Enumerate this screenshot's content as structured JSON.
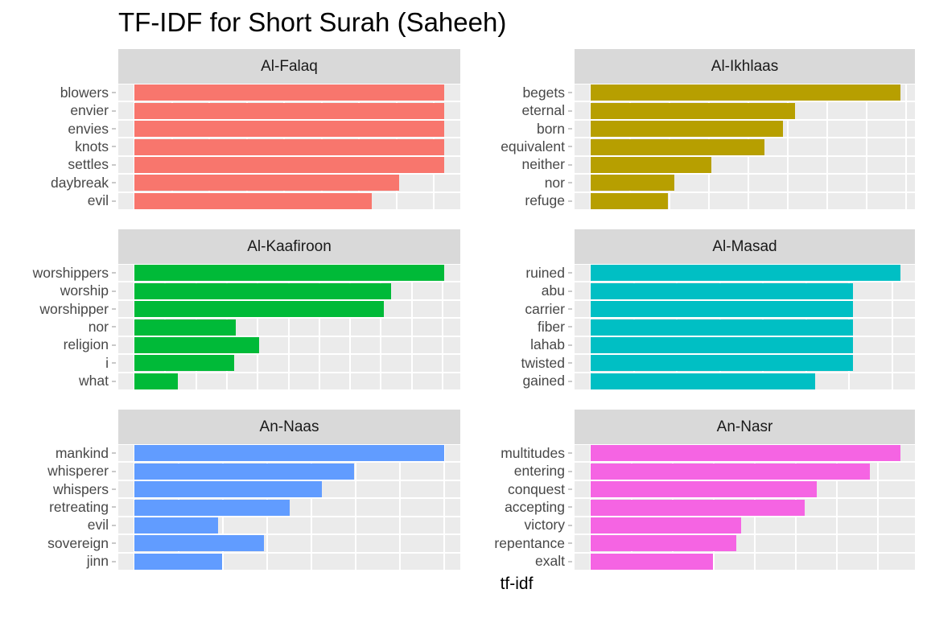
{
  "title": "TF-IDF for Short Surah (Saheeh)",
  "chart_data": {
    "type": "bar",
    "orientation": "horizontal",
    "title": "TF-IDF for Short Surah (Saheeh)",
    "xlabel": "tf-idf",
    "ylabel": "",
    "legend": "none",
    "grid": "white gridlines on gray panel background",
    "facet_layout": {
      "cols": 2,
      "rows": 3,
      "scales": "free"
    },
    "value_scale": "relative bar length per panel (max bar = 1.0); no numeric x tick labels are shown in the image",
    "theme": {
      "panel_background": "#EBEBEB",
      "strip_background": "#D9D9D9",
      "strip_text_color": "#1a1a1a",
      "axis_text_color": "#474747",
      "gridline_color": "#ffffff",
      "title_color": "#000000"
    },
    "facets": [
      {
        "facet": "Al-Falaq",
        "color": "#F8766D",
        "grid_px_spacing": 46.5,
        "categories": [
          "blowers",
          "envier",
          "envies",
          "knots",
          "settles",
          "daybreak",
          "evil"
        ],
        "values_relative": [
          1.0,
          1.0,
          1.0,
          1.0,
          1.0,
          0.855,
          0.766
        ]
      },
      {
        "facet": "Al-Ikhlaas",
        "color": "#B79F00",
        "grid_px_spacing": 49,
        "categories": [
          "begets",
          "eternal",
          "born",
          "equivalent",
          "neither",
          "nor",
          "refuge"
        ],
        "values_relative": [
          1.0,
          0.66,
          0.622,
          0.562,
          0.39,
          0.27,
          0.249
        ]
      },
      {
        "facet": "Al-Kaafiroon",
        "color": "#00BA38",
        "grid_px_spacing": 38.3,
        "categories": [
          "worshippers",
          "worship",
          "worshipper",
          "nor",
          "religion",
          "i",
          "what"
        ],
        "values_relative": [
          1.0,
          0.828,
          0.805,
          0.327,
          0.402,
          0.321,
          0.14
        ]
      },
      {
        "facet": "Al-Masad",
        "color": "#00BFC4",
        "grid_px_spacing": 53.5,
        "categories": [
          "ruined",
          "abu",
          "carrier",
          "fiber",
          "lahab",
          "twisted",
          "gained"
        ],
        "values_relative": [
          1.0,
          0.847,
          0.847,
          0.847,
          0.847,
          0.847,
          0.725
        ]
      },
      {
        "facet": "An-Naas",
        "color": "#619CFF",
        "grid_px_spacing": 55,
        "categories": [
          "mankind",
          "whisperer",
          "whispers",
          "retreating",
          "evil",
          "sovereign",
          "jinn"
        ],
        "values_relative": [
          1.0,
          0.708,
          0.604,
          0.5,
          0.271,
          0.417,
          0.284
        ]
      },
      {
        "facet": "An-Nasr",
        "color": "#F564E3",
        "grid_px_spacing": 51,
        "categories": [
          "multitudes",
          "entering",
          "conquest",
          "accepting",
          "victory",
          "repentance",
          "exalt"
        ],
        "values_relative": [
          1.0,
          0.9,
          0.729,
          0.692,
          0.487,
          0.471,
          0.396
        ]
      }
    ]
  }
}
